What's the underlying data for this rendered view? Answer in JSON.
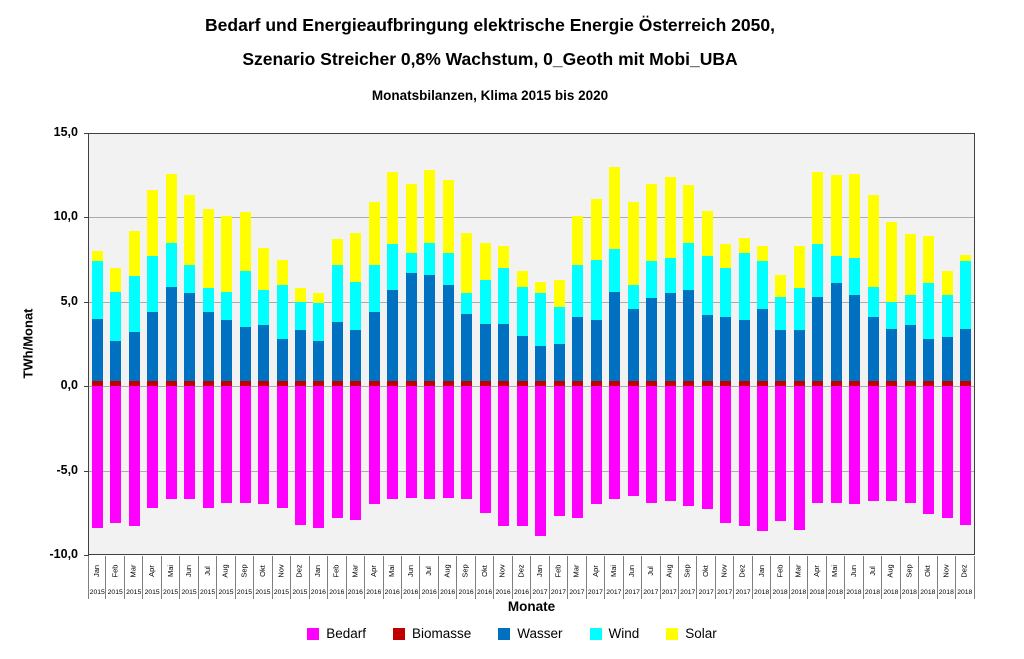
{
  "title": {
    "line1": "Bedarf und Energieaufbringung elektrische Energie Österreich 2050,",
    "line2": "Szenario Streicher 0,8% Wachstum, 0_Geoth mit Mobi_UBA",
    "subtitle": "Monatsbilanzen, Klima 2015 bis 2020"
  },
  "chart_data": {
    "type": "bar",
    "stacked": true,
    "ylabel": "TWh/Monat",
    "xlabel": "Monate",
    "ylim": [
      -10,
      15
    ],
    "grid": true,
    "legend_position": "bottom",
    "plot_bg": "#F2F2F2",
    "grid_color": "#ABABAB",
    "ytick_values": [
      15,
      10,
      5,
      0,
      -5,
      -10
    ],
    "ytick_labels": [
      "15,0",
      "10,0",
      "5,0",
      "0,0",
      "-5,0",
      "-10,0"
    ],
    "gridline_values": [
      10,
      5,
      0,
      -5
    ],
    "categories_month": [
      "Jan",
      "Feb",
      "Mar",
      "Apr",
      "Mai",
      "Jun",
      "Jul",
      "Aug",
      "Sep",
      "Okt",
      "Nov",
      "Dez",
      "Jan",
      "Feb",
      "Mar",
      "Apr",
      "Mai",
      "Jun",
      "Jul",
      "Aug",
      "Sep",
      "Okt",
      "Nov",
      "Dez",
      "Jan",
      "Feb",
      "Mar",
      "Apr",
      "Mai",
      "Jun",
      "Jul",
      "Aug",
      "Sep",
      "Okt",
      "Nov",
      "Dez",
      "Jan",
      "Feb",
      "Mar",
      "Apr",
      "Mai",
      "Jun",
      "Jul",
      "Aug",
      "Sep",
      "Okt",
      "Nov",
      "Dez"
    ],
    "categories_year": [
      "2015",
      "2015",
      "2015",
      "2015",
      "2015",
      "2015",
      "2015",
      "2015",
      "2015",
      "2015",
      "2015",
      "2015",
      "2016",
      "2016",
      "2016",
      "2016",
      "2016",
      "2016",
      "2016",
      "2016",
      "2016",
      "2016",
      "2016",
      "2016",
      "2017",
      "2017",
      "2017",
      "2017",
      "2017",
      "2017",
      "2017",
      "2017",
      "2017",
      "2017",
      "2017",
      "2017",
      "2018",
      "2018",
      "2018",
      "2018",
      "2018",
      "2018",
      "2018",
      "2018",
      "2018",
      "2018",
      "2018",
      "2018"
    ],
    "series": [
      {
        "name": "Bedarf",
        "color": "#FF00FF",
        "values": [
          -8.4,
          -8.1,
          -8.3,
          -7.2,
          -6.7,
          -6.7,
          -7.2,
          -6.9,
          -6.9,
          -7.0,
          -7.2,
          -8.2,
          -8.4,
          -7.8,
          -7.9,
          -7.0,
          -6.7,
          -6.6,
          -6.7,
          -6.6,
          -6.7,
          -7.5,
          -8.3,
          -8.3,
          -8.9,
          -7.7,
          -7.8,
          -7.0,
          -6.7,
          -6.5,
          -6.9,
          -6.8,
          -7.1,
          -7.3,
          -8.1,
          -8.3,
          -8.6,
          -8.0,
          -8.5,
          -6.9,
          -6.9,
          -7.0,
          -6.8,
          -6.8,
          -6.9,
          -7.6,
          -7.8,
          -8.2
        ]
      },
      {
        "name": "Biomasse",
        "color": "#C00000",
        "values": [
          0.3,
          0.3,
          0.3,
          0.3,
          0.3,
          0.3,
          0.3,
          0.3,
          0.3,
          0.3,
          0.3,
          0.3,
          0.3,
          0.3,
          0.3,
          0.3,
          0.3,
          0.3,
          0.3,
          0.3,
          0.3,
          0.3,
          0.3,
          0.3,
          0.3,
          0.3,
          0.3,
          0.3,
          0.3,
          0.3,
          0.3,
          0.3,
          0.3,
          0.3,
          0.3,
          0.3,
          0.3,
          0.3,
          0.3,
          0.3,
          0.3,
          0.3,
          0.3,
          0.3,
          0.3,
          0.3,
          0.3,
          0.3
        ]
      },
      {
        "name": "Wasser",
        "color": "#0070C0",
        "values": [
          3.7,
          2.4,
          2.9,
          4.1,
          5.6,
          5.2,
          4.1,
          3.6,
          3.2,
          3.3,
          2.5,
          3.0,
          2.4,
          3.5,
          3.0,
          4.1,
          5.4,
          6.4,
          6.3,
          5.7,
          4.0,
          3.4,
          3.4,
          2.7,
          2.1,
          2.2,
          3.8,
          3.6,
          5.3,
          4.3,
          4.9,
          5.2,
          5.4,
          3.9,
          3.8,
          3.6,
          4.3,
          3.0,
          3.0,
          5.0,
          5.8,
          5.1,
          3.8,
          3.1,
          3.3,
          2.5,
          2.6,
          3.1
        ]
      },
      {
        "name": "Wind",
        "color": "#00FFFF",
        "values": [
          3.4,
          2.9,
          3.3,
          3.3,
          2.6,
          1.7,
          1.4,
          1.7,
          3.3,
          2.1,
          3.2,
          1.7,
          2.2,
          3.4,
          2.9,
          2.8,
          2.7,
          1.2,
          1.9,
          1.9,
          1.2,
          2.6,
          3.3,
          2.9,
          3.1,
          2.2,
          3.1,
          3.6,
          2.5,
          1.4,
          2.2,
          2.1,
          2.8,
          3.5,
          2.9,
          4.0,
          2.8,
          2.0,
          2.5,
          3.1,
          1.6,
          2.2,
          1.8,
          1.6,
          1.8,
          3.3,
          2.5,
          4.0
        ]
      },
      {
        "name": "Solar",
        "color": "#FFFF00",
        "values": [
          0.6,
          1.4,
          2.7,
          3.9,
          4.1,
          4.1,
          4.7,
          4.5,
          3.5,
          2.5,
          1.5,
          0.8,
          0.6,
          1.5,
          2.9,
          3.7,
          4.3,
          4.1,
          4.3,
          4.3,
          3.6,
          2.2,
          1.3,
          0.9,
          0.7,
          1.6,
          2.9,
          3.6,
          4.9,
          4.9,
          4.6,
          4.8,
          3.4,
          2.7,
          1.4,
          0.9,
          0.9,
          1.3,
          2.5,
          4.3,
          4.8,
          5.0,
          5.4,
          4.7,
          3.6,
          2.8,
          1.4,
          0.4
        ]
      }
    ]
  }
}
